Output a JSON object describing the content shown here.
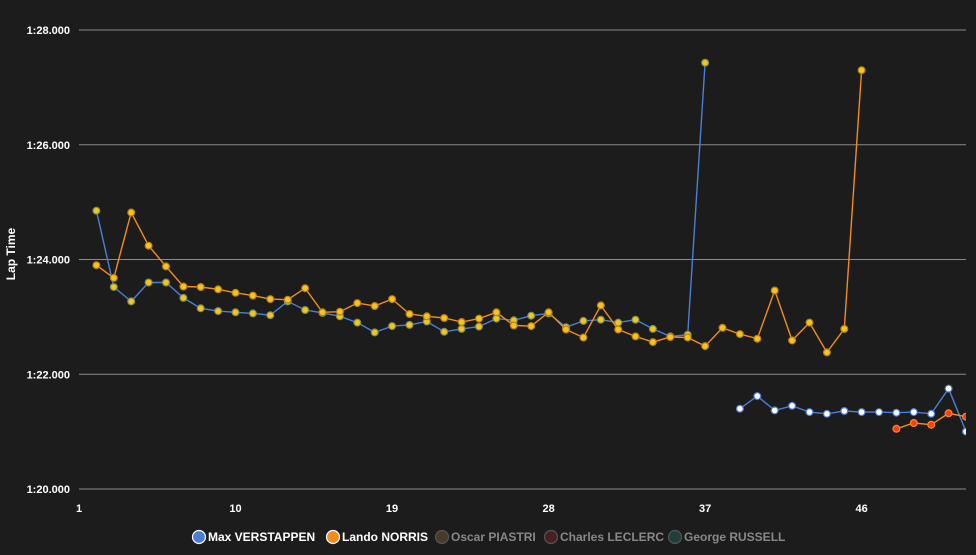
{
  "chart_data": {
    "type": "line",
    "ylabel": "Lap Time",
    "xlim": [
      1,
      52
    ],
    "ylim": [
      80,
      88
    ],
    "x_ticks": [
      1,
      10,
      19,
      28,
      37,
      46
    ],
    "y_ticks": [
      {
        "value": 80,
        "label": "1:20.000"
      },
      {
        "value": 82,
        "label": "1:22.000"
      },
      {
        "value": 84,
        "label": "1:24.000"
      },
      {
        "value": 86,
        "label": "1:26.000"
      },
      {
        "value": 88,
        "label": "1:28.000"
      }
    ],
    "grid": true,
    "legend_position": "bottom-center",
    "series": [
      {
        "name": "Max VERSTAPPEN",
        "color": "#4a7fd6",
        "points": [
          [
            2,
            84.85
          ],
          [
            3,
            83.52
          ],
          [
            4,
            83.27
          ],
          [
            5,
            83.6
          ],
          [
            6,
            83.6
          ],
          [
            7,
            83.33
          ],
          [
            8,
            83.15
          ],
          [
            9,
            83.1
          ],
          [
            10,
            83.08
          ],
          [
            11,
            83.06
          ],
          [
            12,
            83.03
          ],
          [
            13,
            83.27
          ],
          [
            14,
            83.12
          ],
          [
            15,
            83.07
          ],
          [
            16,
            83.01
          ],
          [
            17,
            82.9
          ],
          [
            18,
            82.73
          ],
          [
            19,
            82.84
          ],
          [
            20,
            82.86
          ],
          [
            21,
            82.92
          ],
          [
            22,
            82.74
          ],
          [
            23,
            82.79
          ],
          [
            24,
            82.83
          ],
          [
            25,
            82.97
          ],
          [
            26,
            82.94
          ],
          [
            27,
            83.02
          ],
          [
            28,
            83.06
          ],
          [
            29,
            82.82
          ],
          [
            30,
            82.93
          ],
          [
            31,
            82.95
          ],
          [
            32,
            82.9
          ],
          [
            33,
            82.95
          ],
          [
            34,
            82.79
          ],
          [
            35,
            82.66
          ],
          [
            36,
            82.69
          ],
          [
            37,
            87.43
          ],
          [
            39,
            81.4
          ],
          [
            40,
            81.62
          ],
          [
            41,
            81.37
          ],
          [
            42,
            81.45
          ],
          [
            43,
            81.34
          ],
          [
            44,
            81.31
          ],
          [
            45,
            81.36
          ],
          [
            46,
            81.34
          ],
          [
            47,
            81.34
          ],
          [
            48,
            81.33
          ],
          [
            49,
            81.34
          ],
          [
            50,
            81.31
          ],
          [
            51,
            81.75
          ],
          [
            52,
            81.0
          ],
          [
            53,
            81.1
          ]
        ]
      },
      {
        "name": "Lando NORRIS",
        "color": "#f28c1e",
        "points": [
          [
            2,
            83.9
          ],
          [
            3,
            83.68
          ],
          [
            4,
            84.82
          ],
          [
            5,
            84.24
          ],
          [
            6,
            83.88
          ],
          [
            7,
            83.53
          ],
          [
            8,
            83.52
          ],
          [
            9,
            83.48
          ],
          [
            10,
            83.42
          ],
          [
            11,
            83.37
          ],
          [
            12,
            83.31
          ],
          [
            13,
            83.3
          ],
          [
            14,
            83.5
          ],
          [
            15,
            83.08
          ],
          [
            16,
            83.09
          ],
          [
            17,
            83.24
          ],
          [
            18,
            83.19
          ],
          [
            19,
            83.31
          ],
          [
            20,
            83.05
          ],
          [
            21,
            83.01
          ],
          [
            22,
            82.98
          ],
          [
            23,
            82.91
          ],
          [
            24,
            82.97
          ],
          [
            25,
            83.08
          ],
          [
            26,
            82.85
          ],
          [
            27,
            82.84
          ],
          [
            28,
            83.08
          ],
          [
            29,
            82.78
          ],
          [
            30,
            82.64
          ],
          [
            31,
            83.2
          ],
          [
            32,
            82.78
          ],
          [
            33,
            82.66
          ],
          [
            34,
            82.56
          ],
          [
            35,
            82.65
          ],
          [
            36,
            82.64
          ],
          [
            37,
            82.49
          ],
          [
            38,
            82.81
          ],
          [
            39,
            82.7
          ],
          [
            40,
            82.62
          ],
          [
            41,
            83.46
          ],
          [
            42,
            82.59
          ],
          [
            43,
            82.9
          ],
          [
            44,
            82.38
          ],
          [
            45,
            82.79
          ],
          [
            46,
            87.3
          ],
          [
            48,
            81.05
          ],
          [
            49,
            81.15
          ],
          [
            50,
            81.12
          ],
          [
            51,
            81.32
          ],
          [
            52,
            81.26
          ],
          [
            53,
            80.92
          ]
        ]
      }
    ],
    "legend": [
      {
        "name": "Max VERSTAPPEN",
        "color": "#4a7fd6",
        "active": true
      },
      {
        "name": "Lando NORRIS",
        "color": "#f28c1e",
        "active": true
      },
      {
        "name": "Oscar PIASTRI",
        "color": "#4a3a2a",
        "active": false
      },
      {
        "name": "Charles LECLERC",
        "color": "#4a1e22",
        "active": false
      },
      {
        "name": "George RUSSELL",
        "color": "#1e4038",
        "active": false
      }
    ]
  }
}
